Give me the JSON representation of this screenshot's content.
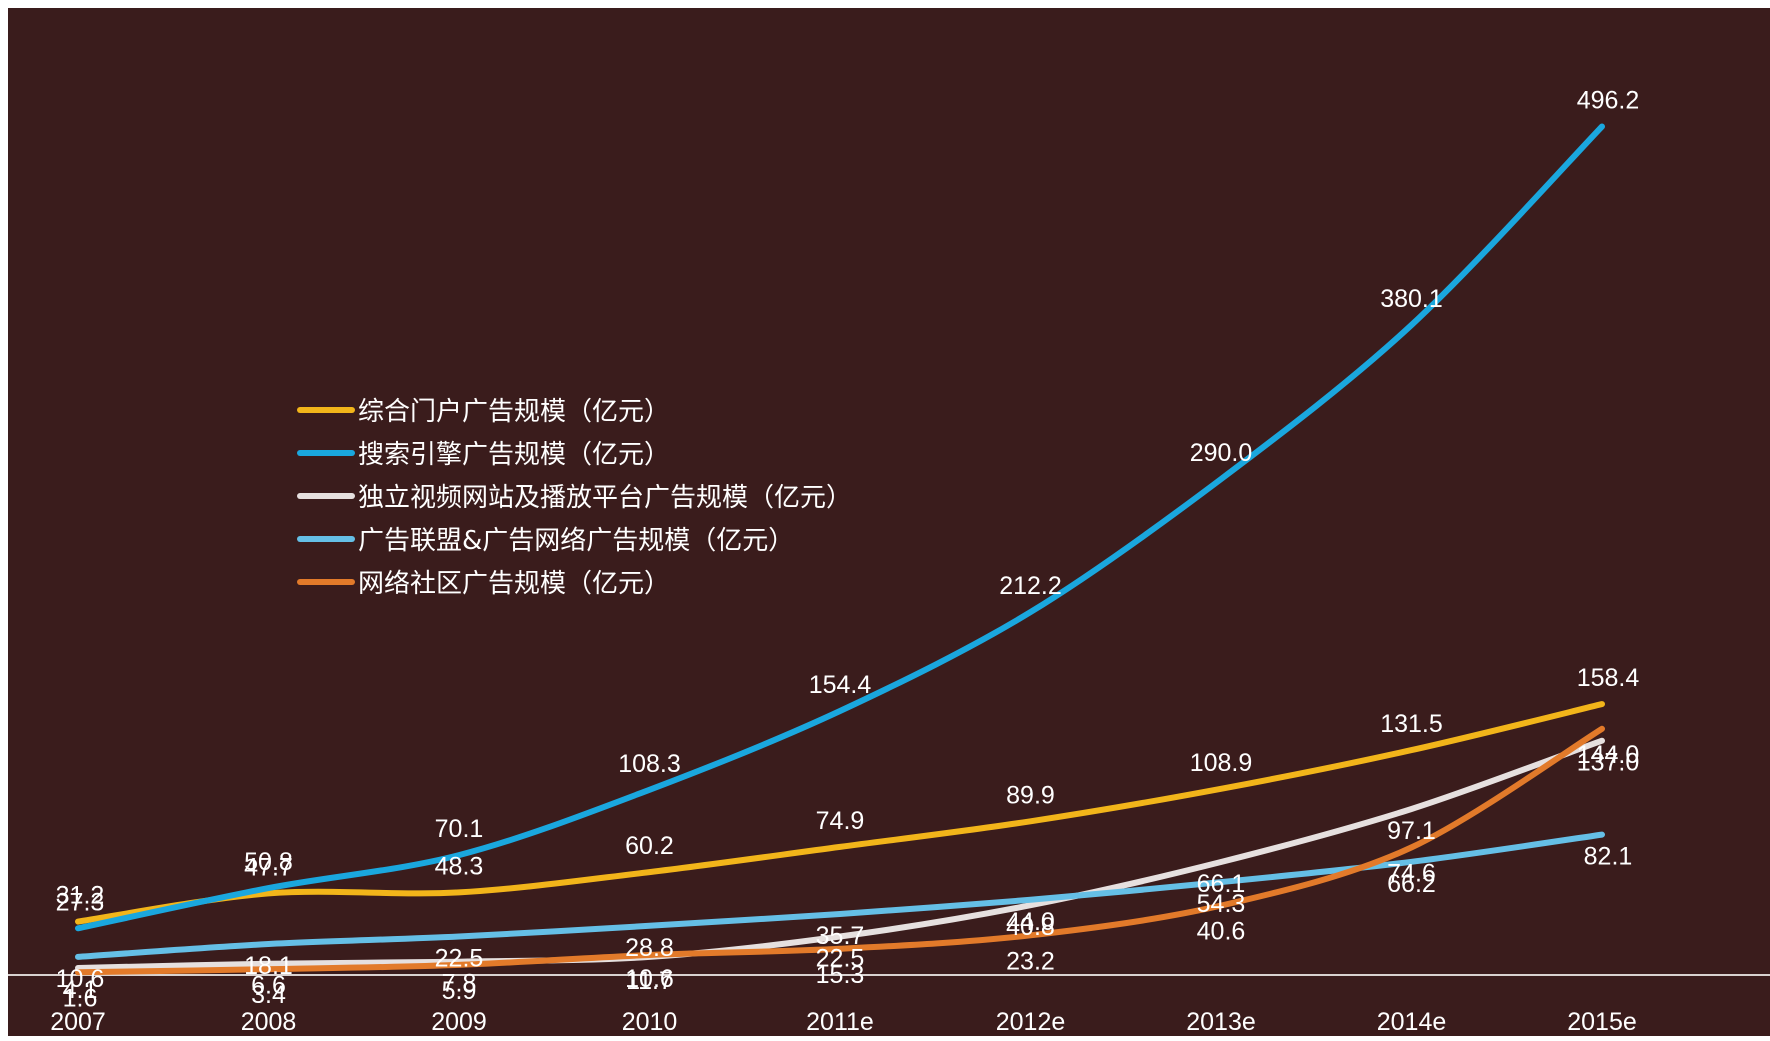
{
  "chart_data": {
    "type": "line",
    "title": "",
    "xlabel": "",
    "ylabel": "",
    "categories": [
      "2007",
      "2008",
      "2009",
      "2010",
      "2011e",
      "2012e",
      "2013e",
      "2014e",
      "2015e"
    ],
    "ylim": [
      0,
      520
    ],
    "grid": false,
    "legend_position": "center-left",
    "background_color": "#3a1c1c",
    "series": [
      {
        "name": "综合门户广告规模（亿元）",
        "color": "#f2b51a",
        "values": [
          31.2,
          47.7,
          48.3,
          60.2,
          74.9,
          89.9,
          108.9,
          131.5,
          158.4
        ]
      },
      {
        "name": "搜索引擎广告规模（亿元）",
        "color": "#1aa7de",
        "values": [
          27.3,
          50.8,
          70.1,
          108.3,
          154.4,
          212.2,
          290.0,
          380.1,
          496.2
        ]
      },
      {
        "name": "独立视频网站及播放平台广告规模（亿元）",
        "color": "#e6e0df",
        "values": [
          4.1,
          6.6,
          7.8,
          10.6,
          22.5,
          40.8,
          66.1,
          97.1,
          137.0
        ]
      },
      {
        "name": "广告联盟&广告网络广告规模（亿元）",
        "color": "#65bfe6",
        "values": [
          10.6,
          18.1,
          22.5,
          28.8,
          35.7,
          44.0,
          54.3,
          66.2,
          82.1
        ]
      },
      {
        "name": "网络社区广告规模（亿元）",
        "color": "#e27a2a",
        "values": [
          1.6,
          3.4,
          5.9,
          11.7,
          15.3,
          23.2,
          40.6,
          74.6,
          144.0
        ]
      }
    ]
  }
}
